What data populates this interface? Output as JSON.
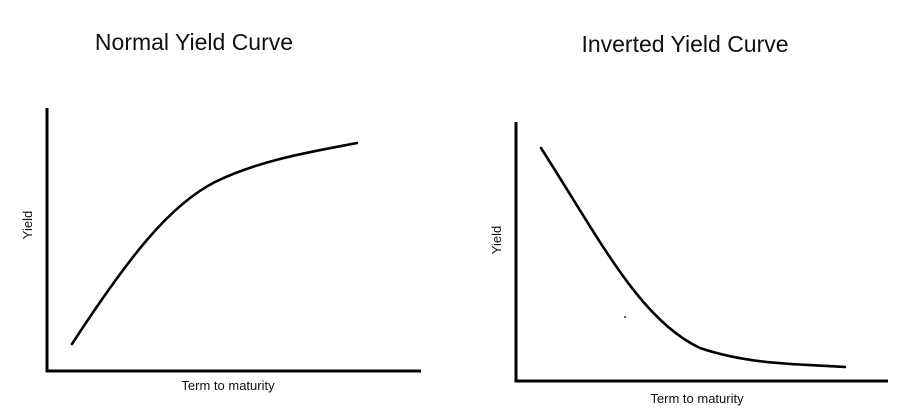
{
  "panels": [
    {
      "title": "Normal Yield Curve",
      "y_label": "Yield",
      "x_label": "Term to maturity"
    },
    {
      "title": "Inverted Yield Curve",
      "y_label": "Yield",
      "x_label": "Term to maturity"
    }
  ]
}
